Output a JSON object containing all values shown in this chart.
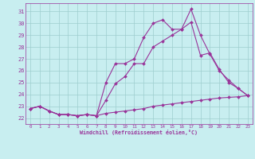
{
  "xlabel": "Windchill (Refroidissement éolien,°C)",
  "bg_color": "#c8eef0",
  "grid_color": "#9ecece",
  "line_color": "#993399",
  "x_ticks": [
    0,
    1,
    2,
    3,
    4,
    5,
    6,
    7,
    8,
    9,
    10,
    11,
    12,
    13,
    14,
    15,
    16,
    17,
    18,
    19,
    20,
    21,
    22,
    23
  ],
  "y_ticks": [
    22,
    23,
    24,
    25,
    26,
    27,
    28,
    29,
    30,
    31
  ],
  "xlim": [
    -0.5,
    23.5
  ],
  "ylim": [
    21.5,
    31.7
  ],
  "line1_x": [
    0,
    1,
    2,
    3,
    4,
    5,
    6,
    7,
    8,
    9,
    10,
    11,
    12,
    13,
    14,
    15,
    16,
    17,
    18,
    19,
    20,
    21,
    22,
    23
  ],
  "line1_y": [
    22.8,
    23.0,
    22.6,
    22.3,
    22.3,
    22.2,
    22.3,
    22.2,
    22.4,
    22.5,
    22.6,
    22.7,
    22.8,
    23.0,
    23.1,
    23.2,
    23.3,
    23.4,
    23.5,
    23.6,
    23.7,
    23.75,
    23.8,
    23.9
  ],
  "line2_x": [
    0,
    1,
    2,
    3,
    4,
    5,
    6,
    7,
    8,
    9,
    10,
    11,
    12,
    13,
    14,
    15,
    16,
    17,
    18,
    19,
    20,
    21,
    22,
    23
  ],
  "line2_y": [
    22.8,
    23.0,
    22.6,
    22.3,
    22.3,
    22.2,
    22.3,
    22.2,
    23.5,
    24.9,
    25.5,
    26.6,
    26.6,
    28.0,
    28.5,
    29.0,
    29.5,
    30.1,
    27.3,
    27.5,
    26.1,
    25.0,
    24.5,
    23.9
  ],
  "line3_x": [
    0,
    1,
    2,
    3,
    4,
    5,
    6,
    7,
    8,
    9,
    10,
    11,
    12,
    13,
    14,
    15,
    16,
    17,
    18,
    19,
    20,
    21,
    22,
    23
  ],
  "line3_y": [
    22.8,
    23.0,
    22.6,
    22.3,
    22.3,
    22.2,
    22.3,
    22.2,
    25.0,
    26.6,
    26.6,
    27.0,
    28.8,
    30.0,
    30.3,
    29.5,
    29.5,
    31.2,
    29.0,
    27.4,
    26.0,
    25.2,
    24.5,
    23.9
  ]
}
